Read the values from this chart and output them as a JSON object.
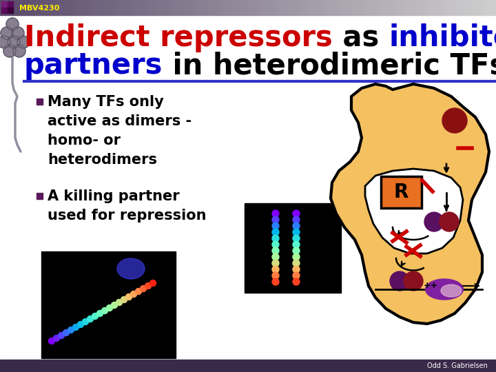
{
  "bg_color": "#ffffff",
  "header_bg_left": "#5a4a6a",
  "header_bg_right": "#c8c8c8",
  "header_label": "MBV4230",
  "header_label_color": "#ffee00",
  "title_line1_parts": [
    {
      "text": "Indirect repressors",
      "color": "#cc0000"
    },
    {
      "text": " as ",
      "color": "#000000"
    },
    {
      "text": "inhibitory",
      "color": "#0000cc"
    }
  ],
  "title_line2_parts": [
    {
      "text": "partners",
      "color": "#0000cc"
    },
    {
      "text": " in heterodimeric TFs",
      "color": "#000000"
    }
  ],
  "divider_color": "#3333cc",
  "bullet1_lines": [
    "Many TFs only",
    "active as dimers -",
    "homo- or",
    "heterodimers"
  ],
  "bullet2_lines": [
    "A killing partner",
    "used for repression"
  ],
  "bullet_color": "#000000",
  "bullet_marker_color": "#5a1a5a",
  "footer_bg": "#3a2a4a",
  "footer_text": "Odd S. Gabrielsen",
  "footer_text_color": "#ffffff",
  "cell_fill": "#f5c060",
  "cell_outline": "#000000",
  "nucleus_fill": "#ffffff",
  "nucleus_outline": "#000000"
}
